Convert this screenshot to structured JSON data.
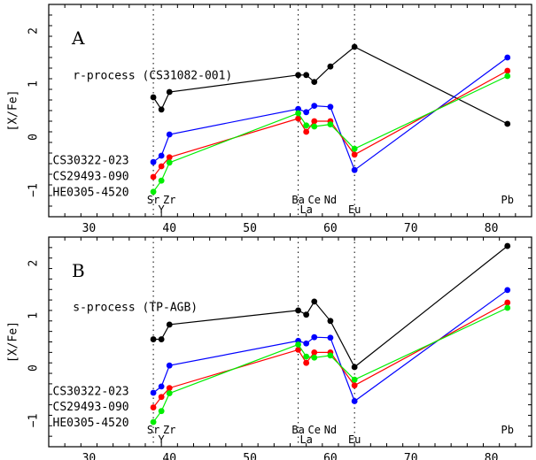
{
  "chart_data": [
    {
      "type": "line",
      "panel_label": "A",
      "title": "",
      "xlabel": "",
      "ylabel": "[X/Fe]",
      "xlim": [
        25,
        85
      ],
      "ylim": [
        -1.5,
        2.5
      ],
      "xticks": [
        30,
        40,
        50,
        60,
        70,
        80
      ],
      "yticks": [
        -1,
        0,
        1,
        2
      ],
      "grid": false,
      "vlines": [
        38,
        56,
        63
      ],
      "element_labels": [
        {
          "label": "Sr",
          "x": 38,
          "row": 0
        },
        {
          "label": "Y",
          "x": 39,
          "row": 1
        },
        {
          "label": "Zr",
          "x": 40,
          "row": 0
        },
        {
          "label": "Ba",
          "x": 56,
          "row": 0
        },
        {
          "label": "La",
          "x": 57,
          "row": 1
        },
        {
          "label": "Ce",
          "x": 58,
          "row": 0
        },
        {
          "label": "Nd",
          "x": 60,
          "row": 0
        },
        {
          "label": "Eu",
          "x": 63,
          "row": 1
        },
        {
          "label": "Pb",
          "x": 82,
          "row": 0
        }
      ],
      "annotations": [
        {
          "text": "r-process  (CS31082-001)",
          "x": 28,
          "y": 1.15
        },
        {
          "text": "CS30322-023",
          "x": 25.5,
          "y": -0.45
        },
        {
          "text": "CS29493-090",
          "x": 25.5,
          "y": -0.75
        },
        {
          "text": "HE0305-4520",
          "x": 25.5,
          "y": -1.05
        }
      ],
      "series": [
        {
          "color": "#000000",
          "x": [
            38,
            39,
            40,
            56,
            57,
            58,
            60,
            63,
            82
          ],
          "y": [
            0.75,
            0.52,
            0.85,
            1.17,
            1.17,
            1.04,
            1.33,
            1.7,
            0.25
          ]
        },
        {
          "color": "#0000ff",
          "x": [
            38,
            39,
            40,
            56,
            57,
            58,
            60,
            63,
            82
          ],
          "y": [
            -0.47,
            -0.35,
            0.05,
            0.53,
            0.47,
            0.59,
            0.57,
            -0.62,
            1.5
          ]
        },
        {
          "color": "#ff0000",
          "x": [
            38,
            39,
            40,
            56,
            57,
            58,
            60,
            63,
            82
          ],
          "y": [
            -0.75,
            -0.55,
            -0.38,
            0.35,
            0.1,
            0.3,
            0.3,
            -0.33,
            1.25
          ]
        },
        {
          "color": "#00ee00",
          "x": [
            38,
            39,
            40,
            56,
            57,
            58,
            60,
            63,
            82
          ],
          "y": [
            -1.03,
            -0.82,
            -0.48,
            0.45,
            0.22,
            0.2,
            0.24,
            -0.22,
            1.15
          ]
        }
      ]
    },
    {
      "type": "line",
      "panel_label": "B",
      "title": "",
      "xlabel": "",
      "ylabel": "[X/Fe]",
      "xlim": [
        25,
        85
      ],
      "ylim": [
        -1.5,
        2.5
      ],
      "xticks": [
        30,
        40,
        50,
        60,
        70,
        80
      ],
      "yticks": [
        -1,
        0,
        1,
        2
      ],
      "grid": false,
      "vlines": [
        38,
        56,
        63
      ],
      "element_labels": [
        {
          "label": "Sr",
          "x": 38,
          "row": 0
        },
        {
          "label": "Y",
          "x": 39,
          "row": 1
        },
        {
          "label": "Zr",
          "x": 40,
          "row": 0
        },
        {
          "label": "Ba",
          "x": 56,
          "row": 0
        },
        {
          "label": "La",
          "x": 57,
          "row": 1
        },
        {
          "label": "Ce",
          "x": 58,
          "row": 0
        },
        {
          "label": "Nd",
          "x": 60,
          "row": 0
        },
        {
          "label": "Eu",
          "x": 63,
          "row": 1
        },
        {
          "label": "Pb",
          "x": 82,
          "row": 0
        }
      ],
      "annotations": [
        {
          "text": "s-process  (TP-AGB)",
          "x": 28,
          "y": 1.15
        },
        {
          "text": "CS30322-023",
          "x": 25.5,
          "y": -0.45
        },
        {
          "text": "CS29493-090",
          "x": 25.5,
          "y": -0.75
        },
        {
          "text": "HE0305-4520",
          "x": 25.5,
          "y": -1.05
        }
      ],
      "series": [
        {
          "color": "#000000",
          "x": [
            38,
            39,
            40,
            56,
            57,
            58,
            60,
            63,
            82
          ],
          "y": [
            0.55,
            0.55,
            0.83,
            1.1,
            1.02,
            1.27,
            0.9,
            0.02,
            2.33
          ]
        },
        {
          "color": "#0000ff",
          "x": [
            38,
            39,
            40,
            56,
            57,
            58,
            60,
            63,
            82
          ],
          "y": [
            -0.47,
            -0.35,
            0.05,
            0.52,
            0.47,
            0.59,
            0.58,
            -0.63,
            1.49
          ]
        },
        {
          "color": "#ff0000",
          "x": [
            38,
            39,
            40,
            56,
            57,
            58,
            60,
            63,
            82
          ],
          "y": [
            -0.75,
            -0.55,
            -0.38,
            0.35,
            0.1,
            0.3,
            0.3,
            -0.33,
            1.25
          ]
        },
        {
          "color": "#00ee00",
          "x": [
            38,
            39,
            40,
            56,
            57,
            58,
            60,
            63,
            82
          ],
          "y": [
            -1.03,
            -0.82,
            -0.48,
            0.45,
            0.22,
            0.2,
            0.24,
            -0.22,
            1.15
          ]
        }
      ]
    }
  ]
}
